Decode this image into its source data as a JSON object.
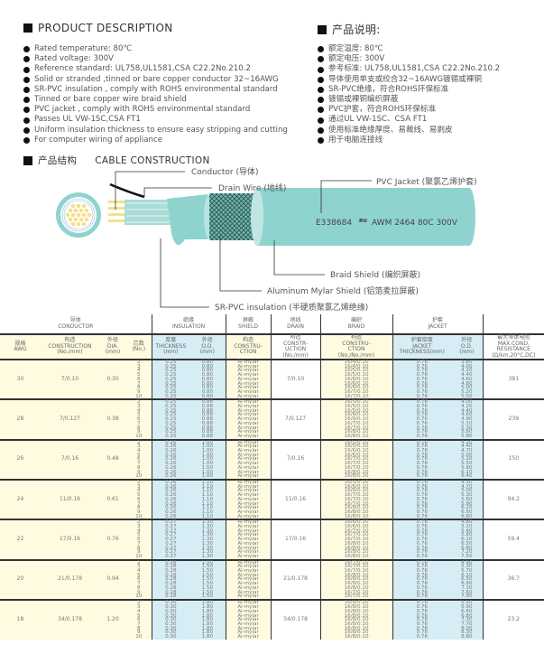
{
  "product_description": {
    "title": "PRODUCT DESCRIPTION",
    "items": [
      "Rated temperature: 80℃",
      "Rated voltage: 300V",
      "Reference standard: UL758,UL1581,CSA C22.2No.210.2",
      "Solid or stranded ,tinned or bare copper conductor 32~16AWG",
      "SR-PVC insulation , comply with ROHS environmental standard",
      "Tinned or bare copper wire braid shield",
      "PVC jacket , comply with ROHS environmental standard",
      "Passes UL VW-1SC,CSA FT1",
      "Uniform insulation thickness to ensure easy stripping and cutting",
      "For computer wiring of appliance"
    ]
  },
  "product_description_cn": {
    "title": "产品说明:",
    "items": [
      "额定温度: 80℃",
      "额定电压: 300V",
      "参考标准: UL758,UL1581,CSA C22.2No.210.2",
      "导体使用单支或绞合32~16AWG镀锡或裸铜",
      "SR-PVC绝缘，符合ROHS环保标准",
      "镀锡或裸铜编织屏蔽",
      "PVC护套，符合ROHS环保标准",
      "通过UL VW-1SC、CSA FT1",
      "使用标准绝缘厚度、易裁线、易剥皮",
      "用于电脑连接线"
    ]
  },
  "construction": {
    "title_cn": "产品结构",
    "title": "CABLE CONSTRUCTION",
    "labels": {
      "conductor": "Conductor (导体)",
      "drain": "Drain Wire (地线)",
      "jacket": "PVC Jacket (聚氯乙烯护套)",
      "braid": "Braid Shield (编织屏蔽)",
      "mylar": "Aluminum Mylar Shield (铝箔麦拉屏蔽)",
      "insulation": "SR-PVC insulation (半硬质聚氯乙烯绝缘)"
    },
    "print_left": "E338684",
    "print_right": "AWM 2464 80C 300V",
    "colors": {
      "jacket": "#8fd3cf",
      "conductor": "#f5e08a"
    }
  },
  "table": {
    "groups": [
      "导体\nCONDUCTOR",
      "绝缘\nINSULATION",
      "屏蔽\nSHIELD",
      "地线\nDRAIN",
      "编织\nBRAID",
      "护套\nJACKET"
    ],
    "headers": [
      "规格\nAWG",
      "构造\nCONSTRUCTION\n(No./mm)",
      "外径\nDIA.\n(mm)",
      "芯数\n(No.)",
      "厚度\nTHICKNESS\n(mm)",
      "外径\nO.D.\n(mm)",
      "构造\nCONSTRU-\nCTION",
      "构造\nCONSTR-\nUCTION\n(No./mm)",
      "构造\nCONSTRU-\nCTION\n(No./No./mm)",
      "护套厚度\nJACKET\nTHICKNESS(mm)",
      "外径\nO.D.\n(mm)",
      "最大导体电阻\nMAX.COND.\nRESISTANCE\n(Ω/km,20°C,DC)"
    ],
    "rows": [
      {
        "awg": "30",
        "construction": "7/0.10",
        "dia": "0.30",
        "cores": "2\n3\n4\n5\n6\n7\n8\n9\n10",
        "ins_thk": "0.25\n0.25\n0.25\n0.25\n0.25\n0.25\n0.25\n0.25\n0.25",
        "ins_od": "0.80\n0.80\n0.80\n0.80\n0.80\n0.80\n0.80\n0.80\n0.80",
        "shield": "Al-mylar\nAl-mylar\nAl-mylar\nAl-mylar\nAl-mylar\nAl-mylar\nAl-mylar\nAl-mylar\nAl-mylar",
        "drain": "7/0.10",
        "braid": "16/4/0.10\n16/4/0.10\n16/5/0.10\n16/5/0.10\n16/6/0.10\n16/6/0.10\n16/6/0.10\n16/7/0.10\n16/7/0.10",
        "jkt_thk": "0.76\n0.76\n0.76\n0.76\n0.76\n0.76\n0.76\n0.76\n0.76",
        "jkt_od": "3.80\n4.00\n4.20\n4.40\n4.60\n4.80\n5.00\n5.20\n5.50",
        "resistance": "381"
      },
      {
        "awg": "28",
        "construction": "7/0.127",
        "dia": "0.38",
        "cores": "2\n3\n4\n5\n6\n7\n8\n9\n10",
        "ins_thk": "0.25\n0.25\n0.25\n0.25\n0.25\n0.25\n0.25\n0.25\n0.25",
        "ins_od": "0.88\n0.88\n0.88\n0.88\n0.88\n0.88\n0.88\n0.88\n0.88",
        "shield": "Al-mylar\nAl-mylar\nAl-mylar\nAl-mylar\nAl-mylar\nAl-mylar\nAl-mylar\nAl-mylar\nAl-mylar",
        "drain": "7/0.127",
        "braid": "16/5/0.10\n16/5/0.10\n16/5/0.10\n16/6/0.10\n16/6/0.10\n16/7/0.10\n16/7/0.10\n16/8/0.10\n16/8/0.10",
        "jkt_thk": "0.76\n0.76\n0.76\n0.76\n0.76\n0.76\n0.76\n0.76\n0.76",
        "jkt_od": "4.00\n4.20\n4.40\n4.60\n4.90\n5.10\n5.30\n5.60\n5.80",
        "resistance": "239"
      },
      {
        "awg": "26",
        "construction": "7/0.16",
        "dia": "0.48",
        "cores": "2\n3\n4\n5\n6\n7\n8\n9\n10",
        "ins_thk": "0.26\n0.26\n0.26\n0.26\n0.26\n0.26\n0.26\n0.26\n0.26",
        "ins_od": "1.00\n1.00\n1.00\n1.00\n1.00\n1.00\n1.00\n1.00\n1.00",
        "shield": "Al-mylar\nAl-mylar\nAl-mylar\nAl-mylar\nAl-mylar\nAl-mylar\nAl-mylar\nAl-mylar\nAl-mylar",
        "drain": "7/0.16",
        "braid": "16/5/0.10\n16/5/0.10\n16/6/0.10\n16/6/0.10\n16/7/0.10\n16/7/0.10\n16/7/0.10\n16/8/0.10\n16/8/0.10",
        "jkt_thk": "0.76\n0.76\n0.76\n0.76\n0.76\n0.76\n0.76\n0.76\n0.76",
        "jkt_od": "4.20\n4.40\n4.70\n5.00\n5.20\n5.50\n5.80\n6.10\n6.40",
        "resistance": "150"
      },
      {
        "awg": "24",
        "construction": "11/0.16",
        "dia": "0.61",
        "cores": "2\n3\n4\n5\n6\n7\n8\n9\n10",
        "ins_thk": "0.26\n0.26\n0.26\n0.26\n0.26\n0.26\n0.26\n0.26\n0.26",
        "ins_od": "1.10\n1.10\n1.10\n1.10\n1.10\n1.10\n1.10\n1.10\n1.10",
        "shield": "Al-mylar\nAl-mylar\nAl-mylar\nAl-mylar\nAl-mylar\nAl-mylar\nAl-mylar\nAl-mylar\nAl-mylar",
        "drain": "11/0.16",
        "braid": "16/5/0.10\n16/6/0.10\n16/6/0.10\n16/7/0.10\n16/7/0.10\n16/7/0.10\n16/8/0.10\n16/8/0.10\n16/8/0.10",
        "jkt_thk": "0.76\n0.76\n0.76\n0.76\n0.76\n0.76\n0.76\n0.76\n0.76",
        "jkt_od": "4.50\n4.70\n5.00\n5.30\n5.60\n5.90\n6.20\n6.50\n6.80",
        "resistance": "94.2"
      },
      {
        "awg": "22",
        "construction": "17/0.16",
        "dia": "0.76",
        "cores": "2\n3\n4\n5\n6\n7\n8\n9\n10",
        "ins_thk": "0.27\n0.27\n0.27\n0.27\n0.27\n0.27\n0.27\n0.27\n0.27",
        "ins_od": "1.30\n1.30\n1.30\n1.30\n1.30\n1.30\n1.30\n1.30\n1.30",
        "shield": "Al-mylar\nAl-mylar\nAl-mylar\nAl-mylar\nAl-mylar\nAl-mylar\nAl-mylar\nAl-mylar\nAl-mylar",
        "drain": "17/0.16",
        "braid": "16/6/0.10\n16/6/0.10\n16/7/0.10\n16/7/0.10\n16/7/0.10\n16/8/0.10\n16/8/0.10\n16/8/0.10\n16/8/0.10",
        "jkt_thk": "0.76\n0.76\n0.76\n0.76\n0.76\n0.76\n0.76\n0.76\n0.76",
        "jkt_od": "4.80\n5.10\n5.40\n5.80\n6.10\n6.50\n6.80\n7.20\n7.50",
        "resistance": "59.4"
      },
      {
        "awg": "20",
        "construction": "21/0.178",
        "dia": "0.94",
        "cores": "2\n3\n4\n5\n6\n7\n8\n9\n10",
        "ins_thk": "0.28\n0.28\n0.28\n0.28\n0.28\n0.28\n0.28\n0.28\n0.28",
        "ins_od": "1.50\n1.50\n1.50\n1.50\n1.50\n1.50\n1.50\n1.50\n1.50",
        "shield": "Al-mylar\nAl-mylar\nAl-mylar\nAl-mylar\nAl-mylar\nAl-mylar\nAl-mylar\nAl-mylar\nAl-mylar",
        "drain": "21/0.178",
        "braid": "16/7/0.10\n16/7/0.10\n16/7/0.10\n16/8/0.10\n16/8/0.10\n16/8/0.10\n16/8/0.10\n16/7/0.10\n16/7/0.10",
        "jkt_thk": "0.76\n0.76\n0.76\n0.76\n0.76\n0.76\n0.76\n0.76\n0.76",
        "jkt_od": "4.90\n5.30\n5.70\n6.10\n6.50\n6.90\n7.30\n7.60\n7.90",
        "resistance": "36.7"
      },
      {
        "awg": "18",
        "construction": "34/0.178",
        "dia": "1.20",
        "cores": "2\n3\n4\n5\n6\n7\n8\n9\n10",
        "ins_thk": "0.30\n0.30\n0.30\n0.30\n0.30\n0.30\n0.30\n0.30\n0.30",
        "ins_od": "1.80\n1.80\n1.80\n1.80\n1.80\n1.80\n1.80\n1.80\n1.80",
        "shield": "Al-mylar\nAl-mylar\nAl-mylar\nAl-mylar\nAl-mylar\nAl-mylar\nAl-mylar\nAl-mylar\nAl-mylar",
        "drain": "34/0.178",
        "braid": "16/8/0.10\n16/8/0.10\n16/8/0.10\n16/8/0.10\n16/8/0.10\n16/8/0.10\n16/8/0.10\n16/8/0.10\n16/8/0.10",
        "jkt_thk": "0.76\n0.76\n0.76\n0.76\n0.76\n0.76\n0.76\n0.76\n0.76",
        "jkt_od": "5.50\n5.90\n6.40\n6.80\n7.30\n7.70\n8.00\n8.30\n8.80",
        "resistance": "23.2"
      }
    ]
  }
}
